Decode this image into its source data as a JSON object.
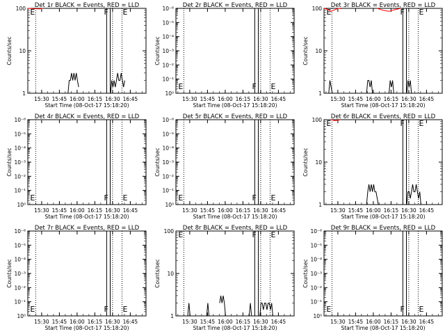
{
  "figure": {
    "ylabel": "Counts/sec",
    "xlabel": "Start Time (08-Oct-17 15:18:20)",
    "xticks": [
      "15:30",
      "15:45",
      "16:00",
      "16:15",
      "16:30",
      "16:45"
    ],
    "marks": [
      "E",
      "F",
      "E"
    ],
    "colors": {
      "events": "#000000",
      "lld": "#ff0000",
      "axis": "#000000"
    }
  },
  "chart_data": [
    {
      "type": "line",
      "title": "Det 1r BLACK = Events, RED = LLD",
      "yscale": "log",
      "ylim": [
        1,
        100
      ],
      "yticks": [
        "1",
        "10",
        "100"
      ],
      "panel_marks": [
        "E",
        "F",
        "E"
      ],
      "xlim_min": [
        0,
        100
      ],
      "vlines_dotted_min": [
        6.7,
        71.7,
        79.7
      ],
      "box_min": [
        66.7,
        69.7
      ],
      "series": [
        {
          "color": "#000000",
          "segments": [
            [
              [
                34,
                1
              ],
              [
                35,
                2
              ],
              [
                36,
                2
              ],
              [
                37,
                3
              ],
              [
                38,
                2
              ],
              [
                39,
                3
              ],
              [
                40,
                2
              ],
              [
                41,
                3
              ],
              [
                42,
                2
              ],
              [
                43,
                1.4
              ]
            ],
            [
              [
                70,
                1
              ],
              [
                71,
                2
              ],
              [
                72,
                1.4
              ],
              [
                73,
                2
              ],
              [
                74,
                1.4
              ],
              [
                75,
                2
              ],
              [
                76,
                3
              ],
              [
                77,
                2
              ],
              [
                78,
                2
              ],
              [
                79,
                3
              ],
              [
                80,
                2
              ],
              [
                81,
                1.4
              ],
              [
                82,
                2
              ]
            ]
          ]
        },
        {
          "color": "#ff0000",
          "segments": [
            [
              [
                0,
                100
              ],
              [
                5,
                98
              ],
              [
                10,
                97
              ],
              [
                13,
                100
              ]
            ]
          ]
        }
      ]
    },
    {
      "type": "line",
      "title": "Det 2r BLACK = Events, RED = LLD",
      "yscale": "log",
      "ylim": [
        1,
        1000000
      ],
      "yticks": [
        "10⁰",
        "10⁻¹",
        "10⁻²",
        "10⁻³",
        "10⁻⁴",
        "10⁻⁵",
        "10⁻⁶"
      ],
      "panel_marks": [
        "E",
        "F",
        "E"
      ],
      "xlim_min": [
        0,
        100
      ],
      "vlines_dotted_min": [
        6.7,
        71.7,
        79.7
      ],
      "box_min": [
        66.7,
        69.7
      ],
      "series": []
    },
    {
      "type": "line",
      "title": "Det 3r BLACK = Events, RED = LLD",
      "yscale": "log",
      "ylim": [
        1,
        100
      ],
      "yticks": [
        "1",
        "10",
        "100"
      ],
      "panel_marks": [
        "E",
        "F",
        "E"
      ],
      "xlim_min": [
        0,
        100
      ],
      "vlines_dotted_min": [
        6.7,
        71.7,
        79.7
      ],
      "box_min": [
        66.7,
        69.7
      ],
      "series": [
        {
          "color": "#000000",
          "segments": [
            [
              [
                4,
                1
              ],
              [
                5,
                2
              ],
              [
                6,
                1.4
              ],
              [
                7,
                1
              ]
            ],
            [
              [
                36,
                1
              ],
              [
                37,
                2
              ],
              [
                38,
                2
              ],
              [
                39,
                1.4
              ],
              [
                40,
                2
              ],
              [
                41,
                1
              ]
            ],
            [
              [
                55,
                1
              ],
              [
                56,
                2
              ],
              [
                57,
                1.4
              ],
              [
                58,
                2
              ],
              [
                59,
                1
              ]
            ],
            [
              [
                70,
                1
              ],
              [
                71,
                2
              ],
              [
                72,
                1.4
              ],
              [
                73,
                2
              ],
              [
                74,
                1
              ]
            ]
          ]
        },
        {
          "color": "#ff0000",
          "segments": [
            [
              [
                0,
                100
              ],
              [
                3,
                95
              ],
              [
                6,
                85
              ],
              [
                9,
                92
              ],
              [
                12,
                100
              ],
              [
                15,
                98
              ]
            ],
            [
              [
                45,
                100
              ],
              [
                50,
                90
              ],
              [
                55,
                85
              ],
              [
                60,
                93
              ],
              [
                65,
                100
              ]
            ]
          ]
        }
      ]
    },
    {
      "type": "line",
      "title": "Det 4r BLACK = Events, RED = LLD",
      "yscale": "log",
      "ylim": [
        1,
        1000000
      ],
      "yticks": [
        "10⁰",
        "10⁻¹",
        "10⁻²",
        "10⁻³",
        "10⁻⁴",
        "10⁻⁵",
        "10⁻⁶"
      ],
      "panel_marks": [
        "E",
        "F",
        "E"
      ],
      "xlim_min": [
        0,
        100
      ],
      "vlines_dotted_min": [
        6.7,
        71.7,
        79.7
      ],
      "box_min": [
        66.7,
        69.7
      ],
      "series": []
    },
    {
      "type": "line",
      "title": "Det 5r BLACK = Events, RED = LLD",
      "yscale": "log",
      "ylim": [
        1,
        1000000
      ],
      "yticks": [
        "10⁰",
        "10⁻¹",
        "10⁻²",
        "10⁻³",
        "10⁻⁴",
        "10⁻⁵",
        "10⁻⁶"
      ],
      "panel_marks": [
        "E",
        "F",
        "E"
      ],
      "xlim_min": [
        0,
        100
      ],
      "vlines_dotted_min": [
        6.7,
        71.7,
        79.7
      ],
      "box_min": [
        66.7,
        69.7
      ],
      "series": []
    },
    {
      "type": "line",
      "title": "Det 6r BLACK = Events, RED = LLD",
      "yscale": "log",
      "ylim": [
        1,
        100
      ],
      "yticks": [
        "1",
        "10",
        "100"
      ],
      "panel_marks": [
        "E",
        "F",
        "E"
      ],
      "xlim_min": [
        0,
        100
      ],
      "vlines_dotted_min": [
        6.7,
        71.7,
        79.7
      ],
      "box_min": [
        66.7,
        69.7
      ],
      "series": [
        {
          "color": "#000000",
          "segments": [
            [
              [
                36,
                1
              ],
              [
                37,
                2
              ],
              [
                38,
                3
              ],
              [
                39,
                2
              ],
              [
                40,
                3
              ],
              [
                41,
                2
              ],
              [
                42,
                3
              ],
              [
                43,
                2
              ],
              [
                44,
                2
              ],
              [
                45,
                1.4
              ],
              [
                46,
                1
              ]
            ],
            [
              [
                70,
                1
              ],
              [
                71,
                2
              ],
              [
                72,
                2
              ],
              [
                73,
                1.4
              ],
              [
                74,
                2
              ],
              [
                75,
                3
              ],
              [
                76,
                2
              ],
              [
                77,
                2
              ],
              [
                78,
                3
              ],
              [
                79,
                2
              ],
              [
                80,
                1.4
              ],
              [
                81,
                2
              ],
              [
                82,
                1
              ]
            ]
          ]
        },
        {
          "color": "#ff0000",
          "segments": [
            [
              [
                6,
                100
              ],
              [
                9,
                95
              ],
              [
                12,
                97
              ],
              [
                14,
                100
              ]
            ]
          ]
        }
      ]
    },
    {
      "type": "line",
      "title": "Det 7r BLACK = Events, RED = LLD",
      "yscale": "log",
      "ylim": [
        1,
        1000000
      ],
      "yticks": [
        "10⁰",
        "10⁻¹",
        "10⁻²",
        "10⁻³",
        "10⁻⁴",
        "10⁻⁵",
        "10⁻⁶"
      ],
      "panel_marks": [
        "E",
        "F",
        "E"
      ],
      "xlim_min": [
        0,
        100
      ],
      "vlines_dotted_min": [
        6.7,
        71.7,
        79.7
      ],
      "box_min": [
        66.7,
        69.7
      ],
      "series": []
    },
    {
      "type": "line",
      "title": "Det 8r BLACK = Events, RED = LLD",
      "yscale": "log",
      "ylim": [
        1,
        100
      ],
      "yticks": [
        "1",
        "10",
        "100"
      ],
      "panel_marks": [
        "E",
        "F",
        "E"
      ],
      "xlim_min": [
        0,
        100
      ],
      "vlines_dotted_min": [
        6.7,
        71.7,
        79.7
      ],
      "box_min": [
        66.7,
        69.7
      ],
      "series": [
        {
          "color": "#000000",
          "segments": [
            [
              [
                10,
                1
              ],
              [
                11,
                2
              ],
              [
                12,
                1
              ]
            ],
            [
              [
                26,
                1
              ],
              [
                27,
                2
              ],
              [
                28,
                1
              ]
            ],
            [
              [
                37,
                2
              ],
              [
                38,
                3
              ],
              [
                39,
                2
              ],
              [
                40,
                3
              ],
              [
                41,
                2
              ],
              [
                42,
                1
              ]
            ],
            [
              [
                62,
                1
              ],
              [
                63,
                2
              ],
              [
                64,
                1
              ]
            ],
            [
              [
                71,
                1
              ],
              [
                72,
                2
              ],
              [
                73,
                2
              ],
              [
                74,
                1.4
              ],
              [
                75,
                2
              ],
              [
                76,
                2
              ],
              [
                77,
                1.4
              ],
              [
                78,
                2
              ],
              [
                79,
                2
              ],
              [
                80,
                1.4
              ],
              [
                81,
                2
              ],
              [
                82,
                1
              ]
            ]
          ]
        }
      ]
    },
    {
      "type": "line",
      "title": "Det 9r BLACK = Events, RED = LLD",
      "yscale": "log",
      "ylim": [
        1,
        1000000
      ],
      "yticks": [
        "10⁰",
        "10⁻¹",
        "10⁻²",
        "10⁻³",
        "10⁻⁴",
        "10⁻⁵",
        "10⁻⁶"
      ],
      "panel_marks": [
        "E",
        "F",
        "E"
      ],
      "xlim_min": [
        0,
        100
      ],
      "vlines_dotted_min": [
        6.7,
        71.7,
        79.7
      ],
      "box_min": [
        66.7,
        69.7
      ],
      "series": []
    }
  ]
}
